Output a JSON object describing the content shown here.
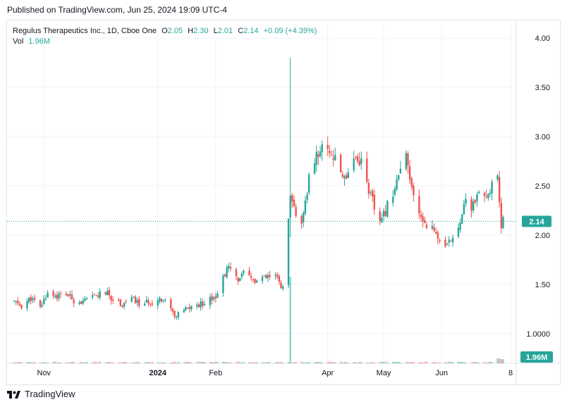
{
  "header": {
    "published": "Published on TradingView.com, Jun 25, 2024 19:09 UTC-4"
  },
  "legend": {
    "symbol": "Regulus Therapeutics Inc., 1D, Cboe One",
    "o_label": "O",
    "o_value": "2.05",
    "h_label": "H",
    "h_value": "2.30",
    "l_label": "L",
    "l_value": "2.01",
    "c_label": "C",
    "c_value": "2.14",
    "change": "+0.09 (+4.39%)",
    "vol_label": "Vol",
    "vol_value": "1.96M"
  },
  "footer": {
    "brand": "TradingView"
  },
  "colors": {
    "up": "#26a69a",
    "down": "#ef5350",
    "grid": "#f0f3fa",
    "text": "#131722",
    "axis_badge": "#26a69a"
  },
  "chart_data": {
    "type": "candlestick",
    "price_axis": {
      "ticks": [
        "4.00",
        "3.50",
        "3.00",
        "2.50",
        "2.00",
        "1.50",
        "1.0000"
      ],
      "ylim": [
        0.82,
        4.18
      ]
    },
    "time_axis": {
      "ticks": [
        "Nov",
        "2024",
        "Feb",
        "Apr",
        "May",
        "Jun",
        "8"
      ]
    },
    "last_price_label": "2.14",
    "last_volume_label": "1.96M",
    "price_path": [
      [
        "2023-10-16",
        1.32
      ],
      [
        "2023-10-20",
        1.28
      ],
      [
        "2023-10-25",
        1.36
      ],
      [
        "2023-10-30",
        1.26
      ],
      [
        "2023-11-03",
        1.42
      ],
      [
        "2023-11-08",
        1.38
      ],
      [
        "2023-11-13",
        1.4
      ],
      [
        "2023-11-17",
        1.34
      ],
      [
        "2023-11-22",
        1.32
      ],
      [
        "2023-11-28",
        1.38
      ],
      [
        "2023-12-04",
        1.42
      ],
      [
        "2023-12-08",
        1.35
      ],
      [
        "2023-12-13",
        1.3
      ],
      [
        "2023-12-18",
        1.36
      ],
      [
        "2023-12-22",
        1.3
      ],
      [
        "2023-12-28",
        1.32
      ],
      [
        "2024-01-03",
        1.36
      ],
      [
        "2024-01-08",
        1.28
      ],
      [
        "2024-01-10",
        1.16
      ],
      [
        "2024-01-15",
        1.24
      ],
      [
        "2024-01-19",
        1.27
      ],
      [
        "2024-01-24",
        1.3
      ],
      [
        "2024-01-29",
        1.36
      ],
      [
        "2024-02-02",
        1.4
      ],
      [
        "2024-02-06",
        1.62
      ],
      [
        "2024-02-08",
        1.67
      ],
      [
        "2024-02-12",
        1.55
      ],
      [
        "2024-02-16",
        1.6
      ],
      [
        "2024-02-22",
        1.53
      ],
      [
        "2024-02-27",
        1.56
      ],
      [
        "2024-03-04",
        1.58
      ],
      [
        "2024-03-08",
        1.46
      ],
      [
        "2024-03-12",
        2.35
      ],
      [
        "2024-03-14",
        2.28
      ],
      [
        "2024-03-18",
        2.08
      ],
      [
        "2024-03-20",
        2.3
      ],
      [
        "2024-03-22",
        2.6
      ],
      [
        "2024-03-27",
        2.85
      ],
      [
        "2024-04-01",
        2.9
      ],
      [
        "2024-04-05",
        2.75
      ],
      [
        "2024-04-10",
        2.58
      ],
      [
        "2024-04-15",
        2.8
      ],
      [
        "2024-04-19",
        2.75
      ],
      [
        "2024-04-24",
        2.4
      ],
      [
        "2024-04-29",
        2.1
      ],
      [
        "2024-05-03",
        2.3
      ],
      [
        "2024-05-08",
        2.55
      ],
      [
        "2024-05-13",
        2.78
      ],
      [
        "2024-05-16",
        2.45
      ],
      [
        "2024-05-20",
        2.2
      ],
      [
        "2024-05-24",
        2.12
      ],
      [
        "2024-05-29",
        2.02
      ],
      [
        "2024-06-03",
        1.85
      ],
      [
        "2024-06-06",
        1.95
      ],
      [
        "2024-06-10",
        2.1
      ],
      [
        "2024-06-13",
        2.32
      ],
      [
        "2024-06-17",
        2.28
      ],
      [
        "2024-06-20",
        2.4
      ],
      [
        "2024-06-24",
        2.35
      ],
      [
        "2024-06-27",
        2.48
      ],
      [
        "2024-07-01",
        2.55
      ],
      [
        "2024-07-03",
        2.06
      ],
      [
        "2024-07-04",
        2.14
      ]
    ],
    "spike": {
      "date": "2024-03-12",
      "high": 3.8,
      "low": 1.98
    },
    "volume_spike": {
      "date": "2024-03-12"
    }
  }
}
